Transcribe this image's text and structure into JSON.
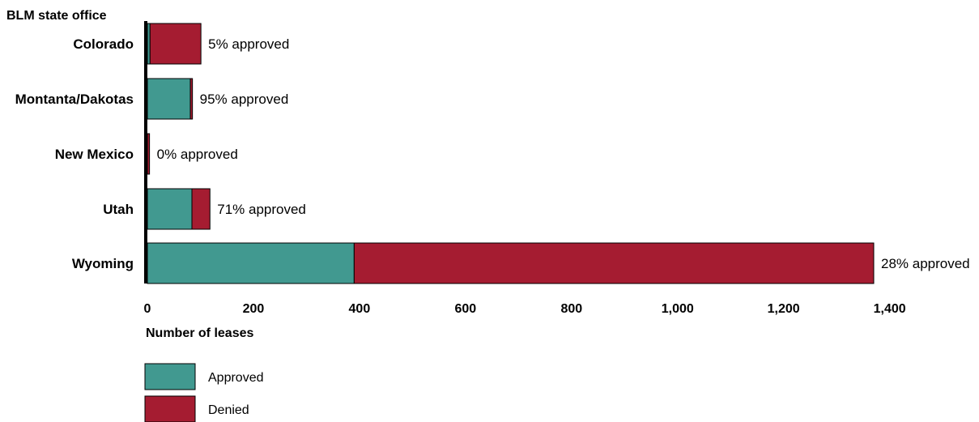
{
  "chart_data": {
    "type": "bar",
    "orientation": "horizontal",
    "stacked": true,
    "y_axis_title": "BLM state office",
    "x_axis_title": "Number of leases",
    "categories": [
      "Colorado",
      "Montanta/Dakotas",
      "New Mexico",
      "Utah",
      "Wyoming"
    ],
    "series": [
      {
        "name": "Approved",
        "color": "#419990",
        "values": [
          5,
          81,
          0,
          84,
          390
        ]
      },
      {
        "name": "Denied",
        "color": "#a51c31",
        "values": [
          96,
          4,
          4,
          34,
          980
        ]
      }
    ],
    "data_labels": [
      "5% approved",
      "95% approved",
      "0% approved",
      "71% approved",
      "28% approved"
    ],
    "xlim": [
      0,
      1400
    ],
    "xticks": [
      {
        "value": 0,
        "label": "0"
      },
      {
        "value": 200,
        "label": "200"
      },
      {
        "value": 400,
        "label": "400"
      },
      {
        "value": 600,
        "label": "600"
      },
      {
        "value": 800,
        "label": "800"
      },
      {
        "value": 1000,
        "label": "1,000"
      },
      {
        "value": 1200,
        "label": "1,200"
      },
      {
        "value": 1400,
        "label": "1,400"
      }
    ],
    "grid": false,
    "legend_position": "bottom-left"
  }
}
